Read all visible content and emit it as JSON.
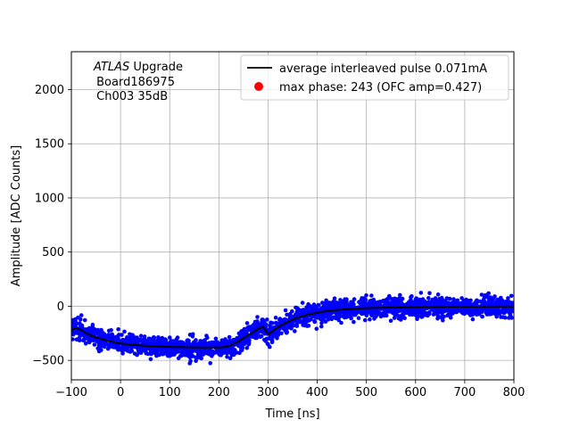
{
  "chart_data": {
    "type": "scatter",
    "title": "",
    "xlabel": "Time [ns]",
    "ylabel": "Amplitude [ADC Counts]",
    "xlim": [
      -100,
      800
    ],
    "ylim": [
      -680,
      2350
    ],
    "grid": true,
    "x_ticks": [
      -100,
      0,
      100,
      200,
      300,
      400,
      500,
      600,
      700,
      800
    ],
    "y_ticks": [
      -500,
      0,
      500,
      1000,
      1500,
      2000
    ],
    "annotation": {
      "italic": "ATLAS",
      "line1_rest": " Upgrade",
      "line2": " Board186975",
      "line3": " Ch003 35dB"
    },
    "legend_position": "upper-right",
    "series": [
      {
        "name": "average interleaved pulse 0.071mA",
        "kind": "line",
        "color": "#000000",
        "x": [
          -100,
          -90,
          -80,
          -70,
          -60,
          -50,
          -40,
          -30,
          -20,
          -10,
          0,
          20,
          40,
          60,
          80,
          100,
          120,
          140,
          160,
          180,
          200,
          210,
          220,
          230,
          240,
          250,
          260,
          270,
          280,
          290,
          300,
          310,
          320,
          340,
          360,
          380,
          400,
          420,
          440,
          460,
          480,
          500,
          550,
          600,
          650,
          700,
          750,
          800
        ],
        "y": [
          -220,
          -200,
          -220,
          -250,
          -270,
          -290,
          -300,
          -315,
          -325,
          -335,
          -345,
          -355,
          -362,
          -368,
          -372,
          -376,
          -378,
          -380,
          -380,
          -381,
          -381,
          -378,
          -370,
          -350,
          -325,
          -295,
          -265,
          -240,
          -210,
          -190,
          -260,
          -230,
          -195,
          -145,
          -105,
          -80,
          -60,
          -45,
          -35,
          -28,
          -22,
          -18,
          -12,
          -8,
          -6,
          -5,
          -4,
          -4
        ]
      },
      {
        "name": "max phase: 243 (OFC amp=0.427)",
        "kind": "scatter",
        "color": "#ff0000"
      }
    ],
    "scatter_cloud": {
      "color": "#0000ff",
      "points": 2400,
      "x_range": [
        -100,
        800
      ],
      "spread_adc": 45
    }
  }
}
